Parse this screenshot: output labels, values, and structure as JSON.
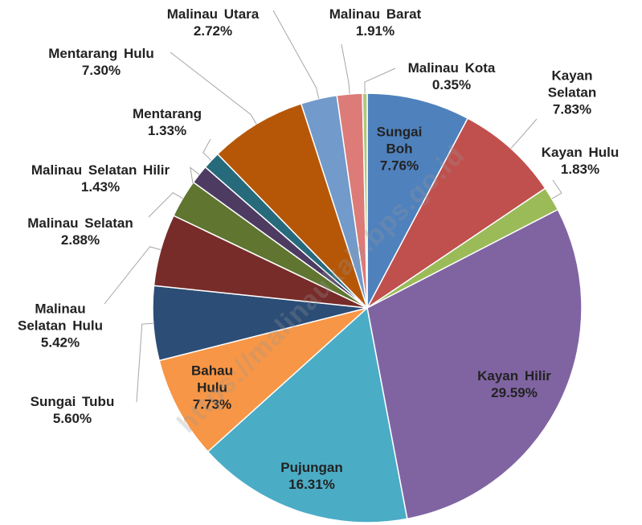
{
  "chart_data": {
    "type": "pie",
    "categories": [
      "Sungai Boh",
      "Kayan Selatan",
      "Kayan Hulu",
      "Kayan Hilir",
      "Pujungan",
      "Bahau Hulu",
      "Sungai Tubu",
      "Malinau Selatan Hulu",
      "Malinau Selatan",
      "Malinau Selatan Hilir",
      "Mentarang",
      "Mentarang Hulu",
      "Malinau Utara",
      "Malinau Barat",
      "Malinau Kota"
    ],
    "values": [
      7.76,
      7.83,
      1.83,
      29.59,
      16.31,
      7.73,
      5.6,
      5.42,
      2.88,
      1.43,
      1.33,
      7.3,
      2.72,
      1.91,
      0.35
    ],
    "value_labels": [
      "7.76%",
      "7.83%",
      "1.83%",
      "29.59%",
      "16.31%",
      "7.73%",
      "5.60%",
      "5.42%",
      "2.88%",
      "1.43%",
      "1.33%",
      "7.30%",
      "2.72%",
      "1.91%",
      "0.35%"
    ],
    "colors": [
      "#4f81bd",
      "#c0504d",
      "#9bbb59",
      "#8064a2",
      "#4bacc6",
      "#f79646",
      "#2c4d75",
      "#772c2a",
      "#5f7530",
      "#4d3b62",
      "#276a7c",
      "#b65708",
      "#729aca",
      "#dc7b78",
      "#afc97a"
    ],
    "watermark": "https://malinaukab.bps.go.id"
  }
}
